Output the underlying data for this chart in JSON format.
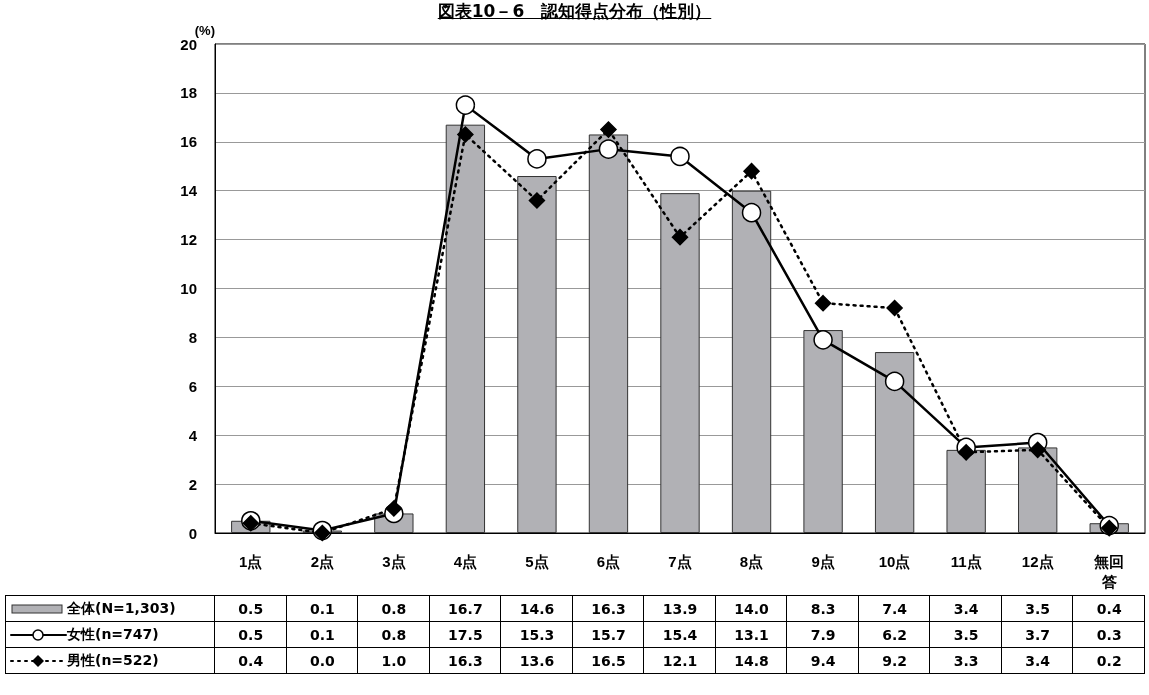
{
  "chart_data": {
    "type": "bar",
    "title": "図表10－6　認知得点分布（性別）",
    "ylabel": "(%)",
    "categories": [
      "1点",
      "2点",
      "3点",
      "4点",
      "5点",
      "6点",
      "7点",
      "8点",
      "9点",
      "10点",
      "11点",
      "12点",
      "無回答"
    ],
    "series": [
      {
        "name": "全体(N=1,303)",
        "color": "#b1b1b5",
        "values": [
          0.5,
          0.1,
          0.8,
          16.7,
          14.6,
          16.3,
          13.9,
          14.0,
          8.3,
          7.4,
          3.4,
          3.5,
          0.4
        ],
        "value_labels": [
          "0.5",
          "0.1",
          "0.8",
          "16.7",
          "14.6",
          "16.3",
          "13.9",
          "14.0",
          "8.3",
          "7.4",
          "3.4",
          "3.5",
          "0.4"
        ]
      },
      {
        "name": "女性(n=747)",
        "type": "line",
        "color": "#000000",
        "marker": "circle",
        "line_style": "solid",
        "values": [
          0.5,
          0.1,
          0.8,
          17.5,
          15.3,
          15.7,
          15.4,
          13.1,
          7.9,
          6.2,
          3.5,
          3.7,
          0.3
        ],
        "value_labels": [
          "0.5",
          "0.1",
          "0.8",
          "17.5",
          "15.3",
          "15.7",
          "15.4",
          "13.1",
          "7.9",
          "6.2",
          "3.5",
          "3.7",
          "0.3"
        ]
      },
      {
        "name": "男性(n=522)",
        "type": "line",
        "color": "#000000",
        "marker": "diamond",
        "line_style": "dotted",
        "values": [
          0.4,
          0.0,
          1.0,
          16.3,
          13.6,
          16.5,
          12.1,
          14.8,
          9.4,
          9.2,
          3.3,
          3.4,
          0.2
        ],
        "value_labels": [
          "0.4",
          "0.0",
          "1.0",
          "16.3",
          "13.6",
          "16.5",
          "12.1",
          "14.8",
          "9.4",
          "9.2",
          "3.3",
          "3.4",
          "0.2"
        ]
      }
    ],
    "ylim": [
      0,
      20
    ],
    "yticks": [
      0,
      2,
      4,
      6,
      8,
      10,
      12,
      14,
      16,
      18,
      20
    ],
    "grid": "y",
    "legend": "bottom left"
  }
}
